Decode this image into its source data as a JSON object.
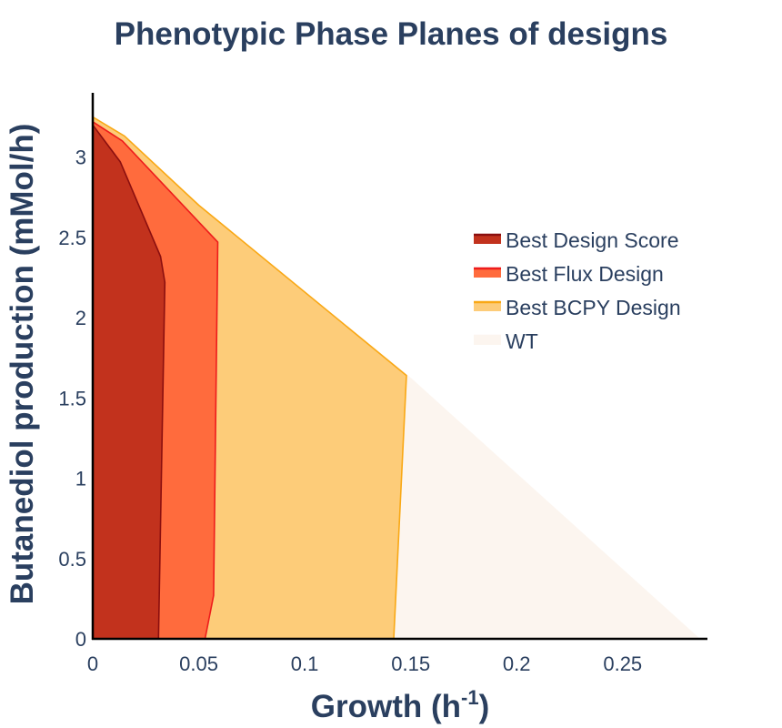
{
  "chart_data": {
    "type": "area",
    "title": "Phenotypic Phase Planes of designs",
    "xlabel": "Growth (h",
    "xlabel_sup": "-1",
    "xlabel_close": ")",
    "ylabel": "Butanediol production (mMol/h)",
    "xlim": [
      0,
      0.29
    ],
    "ylim": [
      0,
      3.4
    ],
    "xticks": [
      {
        "value": 0,
        "label": "0"
      },
      {
        "value": 0.05,
        "label": "0.05"
      },
      {
        "value": 0.1,
        "label": "0.1"
      },
      {
        "value": 0.15,
        "label": "0.15"
      },
      {
        "value": 0.2,
        "label": "0.2"
      },
      {
        "value": 0.25,
        "label": "0.25"
      }
    ],
    "yticks": [
      {
        "value": 0,
        "label": "0"
      },
      {
        "value": 0.5,
        "label": "0.5"
      },
      {
        "value": 1,
        "label": "1"
      },
      {
        "value": 1.5,
        "label": "1.5"
      },
      {
        "value": 2,
        "label": "2"
      },
      {
        "value": 2.5,
        "label": "2.5"
      },
      {
        "value": 3,
        "label": "3"
      }
    ],
    "grid": false,
    "legend_position": "right",
    "series": [
      {
        "name": "WT",
        "fill": "#fcf5ef",
        "line": "#fcf5ef",
        "points": [
          [
            0,
            3.25
          ],
          [
            0.015,
            3.13
          ],
          [
            0.05,
            2.7
          ],
          [
            0.15,
            1.62
          ],
          [
            0.286,
            0
          ],
          [
            0,
            0
          ]
        ]
      },
      {
        "name": "Best BCPY Design",
        "fill": "#fdcc79",
        "line": "#f9a815",
        "points": [
          [
            0,
            3.25
          ],
          [
            0.015,
            3.13
          ],
          [
            0.05,
            2.7
          ],
          [
            0.148,
            1.64
          ],
          [
            0.142,
            0
          ],
          [
            0,
            0
          ]
        ]
      },
      {
        "name": "Best Flux Design",
        "fill": "#ff6b3d",
        "line": "#ee1c1c",
        "points": [
          [
            0,
            3.22
          ],
          [
            0.014,
            3.1
          ],
          [
            0.059,
            2.47
          ],
          [
            0.057,
            0.27
          ],
          [
            0.053,
            0
          ],
          [
            0,
            0
          ]
        ]
      },
      {
        "name": "Best Design Score",
        "fill": "#c2321d",
        "line": "#8b0f0f",
        "points": [
          [
            0,
            3.2
          ],
          [
            0.013,
            2.97
          ],
          [
            0.032,
            2.38
          ],
          [
            0.034,
            2.22
          ],
          [
            0.031,
            0
          ],
          [
            0,
            0
          ]
        ]
      }
    ],
    "legend_order": [
      "Best Design Score",
      "Best Flux Design",
      "Best BCPY Design",
      "WT"
    ]
  }
}
